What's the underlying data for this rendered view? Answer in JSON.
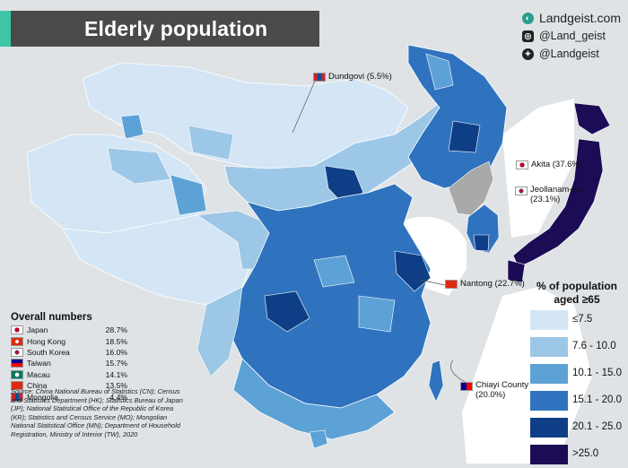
{
  "title": "Elderly population",
  "brand": {
    "site": "Landgeist.com",
    "instagram": "@Land_geist",
    "twitter": "@Landgeist"
  },
  "callouts": {
    "dundgovi": "Dundgovi (5.5%)",
    "akita": "Akita (37.6%)",
    "jeollanam": "Jeollanam-do",
    "jeollanam_value": "(23.1%)",
    "nantong": "Nantong (22.7%)",
    "chiayi": "Chiayi County",
    "chiayi_value": "(20.0%)"
  },
  "legend": {
    "title_line1": "% of population",
    "title_line2": "aged ≥65",
    "bins": [
      {
        "label": "≤7.5",
        "color": "#d4e6f5"
      },
      {
        "label": "7.6  - 10.0",
        "color": "#9dc7e6"
      },
      {
        "label": "10.1 - 15.0",
        "color": "#5da2d6"
      },
      {
        "label": "15.1 - 20.0",
        "color": "#2f73bf"
      },
      {
        "label": "20.1 - 25.0",
        "color": "#0e3f86"
      },
      {
        "label": ">25.0",
        "color": "#1c0c55"
      }
    ]
  },
  "overall": {
    "title": "Overall numbers",
    "rows": [
      {
        "name": "Japan",
        "value": "28.7%"
      },
      {
        "name": "Hong Kong",
        "value": "18.5%"
      },
      {
        "name": "South Korea",
        "value": "16.0%"
      },
      {
        "name": "Taiwan",
        "value": "15.7%"
      },
      {
        "name": "Macau",
        "value": "14.1%"
      },
      {
        "name": "China",
        "value": "13.5%"
      },
      {
        "name": "Mongolia",
        "value": "4.4%"
      }
    ]
  },
  "source": "Source: China National Bureau of Statistics (CN); Census and Statistics Department (HK); Statistics Bureau of Japan (JP); National Statistical Office of the Republic of Korea (KR); Statistics and Census Service (MO); Mongolian National Statistical Office (MN); Department of Household Registration, Ministry of Interior (TW), 2020",
  "colors": {
    "background": "#dfe3e6",
    "title_bar": "#4a4a4a",
    "title_accent": "#3cc6a6",
    "north_korea": "#a9a9a9"
  }
}
